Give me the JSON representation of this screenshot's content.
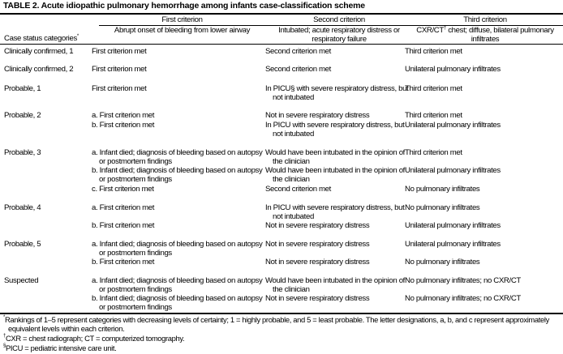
{
  "title": "TABLE 2. Acute idiopathic pulmonary hemorrhage among infants case-classification scheme",
  "header": {
    "category": "Case status categories",
    "category_mark": "*",
    "groups": [
      "First criterion",
      "Second criterion",
      "Third criterion"
    ],
    "descriptions": [
      "Abrupt onset of bleeding from lower airway",
      "Intubated; acute respiratory distress or respiratory failure"
    ],
    "third_desc_a": "CXR/CT",
    "third_desc_mark": "†",
    "third_desc_b": " chest; diffuse, bilateral pulmonary infiltrates"
  },
  "rows": [
    {
      "category": "Clinically confirmed, 1",
      "entries": [
        {
          "first": "First criterion met",
          "second": "Second criterion met",
          "third": "Third criterion met"
        }
      ]
    },
    {
      "category": "Clinically confirmed, 2",
      "entries": [
        {
          "first": "First criterion met",
          "second": "Second criterion met",
          "third": "Unilateral pulmonary infiltrates"
        }
      ]
    },
    {
      "category": "Probable, 1",
      "entries": [
        {
          "first": "First criterion met",
          "second": "In PICU§ with severe respiratory distress, but not intubated",
          "third": "Third criterion met"
        }
      ]
    },
    {
      "category": "Probable, 2",
      "entries": [
        {
          "first": "a. First criterion met",
          "second": "Not in severe respiratory distress",
          "third": "Third criterion met"
        },
        {
          "first": "b. First criterion met",
          "second": "In PICU with severe respiratory distress, but not intubated",
          "third": "Unilateral pulmonary infiltrates"
        }
      ]
    },
    {
      "category": "Probable, 3",
      "entries": [
        {
          "first": "a. Infant died; diagnosis of bleeding based on autopsy or postmortem findings",
          "second": "Would have been intubated in the opinion of the clinician",
          "third": "Third criterion met"
        },
        {
          "first": "b. Infant died; diagnosis of bleeding based on autopsy or postmortem findings",
          "second": "Would have been intubated in the opinion of the clinician",
          "third": "Unilateral pulmonary infiltrates"
        },
        {
          "first": "c. First criterion met",
          "second": "Second criterion met",
          "third": "No pulmonary infiltrates"
        }
      ]
    },
    {
      "category": "Probable, 4",
      "entries": [
        {
          "first": "a. First criterion met",
          "second": "In PICU with severe respiratory distress, but not intubated",
          "third": "No pulmonary infiltrates"
        },
        {
          "first": "b. First criterion met",
          "second": "Not in severe respiratory distress",
          "third": "Unilateral pulmonary infiltrates"
        }
      ]
    },
    {
      "category": "Probable, 5",
      "entries": [
        {
          "first": "a. Infant died; diagnosis of bleeding based on autopsy or postmortem findings",
          "second": "Not in severe respiratory distress",
          "third": "Unilateral pulmonary infiltrates"
        },
        {
          "first": "b. First criterion met",
          "second": "Not in severe respiratory distress",
          "third": "No pulmonary infiltrates"
        }
      ]
    },
    {
      "category": "Suspected",
      "entries": [
        {
          "first": "a. Infant died; diagnosis of bleeding based on autopsy or postmortem findings",
          "second": "Would have been intubated in the opinion of the clinician",
          "third": "No pulmonary infiltrates; no CXR/CT"
        },
        {
          "first": "b. Infant died; diagnosis of bleeding based on autopsy or postmortem findings",
          "second": "Not in severe respiratory distress",
          "third": "No pulmonary infiltrates; no CXR/CT"
        }
      ]
    }
  ],
  "footnotes": [
    {
      "mark": "*",
      "text": "Rankings of 1–5 represent categories with decreasing levels of certainty; 1 = highly probable, and 5 = least probable. The letter designations, a, b, and c represent approximately equivalent levels within each criterion."
    },
    {
      "mark": "†",
      "text": "CXR = chest radiograph; CT = computerized tomography."
    },
    {
      "mark": "§",
      "text": "PICU = pediatric intensive care unit."
    }
  ]
}
